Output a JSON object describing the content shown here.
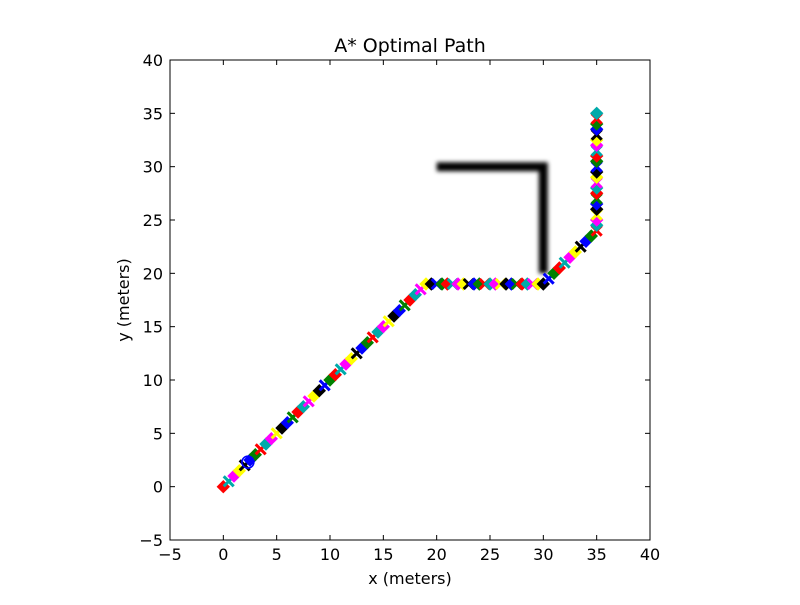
{
  "chart_data": {
    "type": "scatter",
    "title": "A* Optimal Path",
    "xlabel": "x (meters)",
    "ylabel": "y (meters)",
    "xlim": [
      -5,
      40
    ],
    "ylim": [
      -5,
      40
    ],
    "xticks": [
      -5,
      0,
      5,
      10,
      15,
      20,
      25,
      30,
      35,
      40
    ],
    "yticks": [
      -5,
      0,
      5,
      10,
      15,
      20,
      25,
      30,
      35,
      40
    ],
    "xtick_labels": [
      "−5",
      "0",
      "5",
      "10",
      "15",
      "20",
      "25",
      "30",
      "35",
      "40"
    ],
    "ytick_labels": [
      "−5",
      "0",
      "5",
      "10",
      "15",
      "20",
      "25",
      "30",
      "35",
      "40"
    ],
    "grid": false,
    "legend": "none",
    "marker_colors": [
      "#ff0000",
      "#00aaaa",
      "#ff00ff",
      "#ffff00",
      "#000000",
      "#0000ff",
      "#008000"
    ],
    "obstacle": {
      "color": "#000000",
      "points": [
        [
          20,
          30
        ],
        [
          30,
          30
        ],
        [
          30,
          20
        ]
      ]
    },
    "start_marker": {
      "x": 2.3,
      "y": 2.3,
      "color": "#0000ff"
    },
    "path_points": [
      [
        0.0,
        0.0
      ],
      [
        0.5,
        0.5
      ],
      [
        1.0,
        1.0
      ],
      [
        1.5,
        1.5
      ],
      [
        2.0,
        2.0
      ],
      [
        2.5,
        2.5
      ],
      [
        3.0,
        3.0
      ],
      [
        3.5,
        3.5
      ],
      [
        4.0,
        4.0
      ],
      [
        4.5,
        4.5
      ],
      [
        5.0,
        5.0
      ],
      [
        5.5,
        5.5
      ],
      [
        6.0,
        6.0
      ],
      [
        6.5,
        6.5
      ],
      [
        7.0,
        7.0
      ],
      [
        7.5,
        7.5
      ],
      [
        8.0,
        8.0
      ],
      [
        8.5,
        8.5
      ],
      [
        9.0,
        9.0
      ],
      [
        9.5,
        9.5
      ],
      [
        10.0,
        10.0
      ],
      [
        10.5,
        10.5
      ],
      [
        11.0,
        11.0
      ],
      [
        11.5,
        11.5
      ],
      [
        12.0,
        12.0
      ],
      [
        12.5,
        12.5
      ],
      [
        13.0,
        13.0
      ],
      [
        13.5,
        13.5
      ],
      [
        14.0,
        14.0
      ],
      [
        14.5,
        14.5
      ],
      [
        15.0,
        15.0
      ],
      [
        15.5,
        15.5
      ],
      [
        16.0,
        16.0
      ],
      [
        16.5,
        16.5
      ],
      [
        17.0,
        17.0
      ],
      [
        17.5,
        17.5
      ],
      [
        18.0,
        18.0
      ],
      [
        18.5,
        18.5
      ],
      [
        19.0,
        19.0
      ],
      [
        19.5,
        19.0
      ],
      [
        20.0,
        19.0
      ],
      [
        20.5,
        19.0
      ],
      [
        21.0,
        19.0
      ],
      [
        21.5,
        19.0
      ],
      [
        22.0,
        19.0
      ],
      [
        22.5,
        19.0
      ],
      [
        23.0,
        19.0
      ],
      [
        23.5,
        19.0
      ],
      [
        24.0,
        19.0
      ],
      [
        24.5,
        19.0
      ],
      [
        25.0,
        19.0
      ],
      [
        25.5,
        19.0
      ],
      [
        26.0,
        19.0
      ],
      [
        26.5,
        19.0
      ],
      [
        27.0,
        19.0
      ],
      [
        27.5,
        19.0
      ],
      [
        28.0,
        19.0
      ],
      [
        28.5,
        19.0
      ],
      [
        29.0,
        19.0
      ],
      [
        29.5,
        19.0
      ],
      [
        30.0,
        19.0
      ],
      [
        30.5,
        19.5
      ],
      [
        31.0,
        20.0
      ],
      [
        31.5,
        20.5
      ],
      [
        32.0,
        21.0
      ],
      [
        32.5,
        21.5
      ],
      [
        33.0,
        22.0
      ],
      [
        33.5,
        22.5
      ],
      [
        34.0,
        23.0
      ],
      [
        34.5,
        23.5
      ],
      [
        35.0,
        24.0
      ],
      [
        35.0,
        24.5
      ],
      [
        35.0,
        25.0
      ],
      [
        35.0,
        25.5
      ],
      [
        35.0,
        26.0
      ],
      [
        35.0,
        26.5
      ],
      [
        35.0,
        27.0
      ],
      [
        35.0,
        27.5
      ],
      [
        35.0,
        28.0
      ],
      [
        35.0,
        28.5
      ],
      [
        35.0,
        29.0
      ],
      [
        35.0,
        29.5
      ],
      [
        35.0,
        30.0
      ],
      [
        35.0,
        30.5
      ],
      [
        35.0,
        31.0
      ],
      [
        35.0,
        31.5
      ],
      [
        35.0,
        32.0
      ],
      [
        35.0,
        32.5
      ],
      [
        35.0,
        33.0
      ],
      [
        35.0,
        33.5
      ],
      [
        35.0,
        34.0
      ],
      [
        35.0,
        34.5
      ],
      [
        35.0,
        35.0
      ]
    ]
  }
}
